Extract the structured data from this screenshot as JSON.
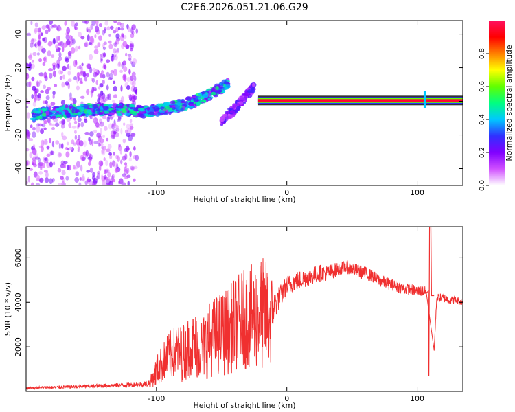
{
  "figure": {
    "title": "C2E6.2026.051.21.06.G29"
  },
  "chart_data": [
    {
      "type": "heatmap",
      "title": "C2E6.2026.051.21.06.G29",
      "xlabel": "Height of straight line (km)",
      "ylabel": "Frequency (Hz)",
      "xlim": [
        -200,
        135
      ],
      "ylim": [
        -50,
        48
      ],
      "xticks": [
        -100,
        0,
        100
      ],
      "yticks": [
        -40,
        -20,
        0,
        20,
        40
      ],
      "tick_labels_x": [
        "-100",
        "0",
        "100"
      ],
      "tick_labels_y": [
        "-40",
        "-20",
        "0",
        "20",
        "40"
      ],
      "colorbar": {
        "label": "Normalized spectral amplitude",
        "range": [
          0,
          1
        ],
        "ticks": [
          0.0,
          0.2,
          0.4,
          0.6,
          0.8
        ],
        "tick_labels": [
          "0.0",
          "0.2",
          "0.4",
          "0.6",
          "0.8"
        ],
        "colors": [
          "#ffffff",
          "#d050ff",
          "#8000ff",
          "#3030ff",
          "#00c8ff",
          "#00ff80",
          "#60ff00",
          "#ffff00",
          "#ff8000",
          "#ff0000",
          "#ff1060"
        ]
      },
      "features": [
        {
          "name": "noise-region",
          "x_range": [
            -200,
            -115
          ],
          "y_range": [
            -50,
            48
          ],
          "amplitude": 0.15
        },
        {
          "name": "low-frequency-trace",
          "points": [
            [
              -195,
              -8
            ],
            [
              -170,
              -6
            ],
            [
              -150,
              -5
            ],
            [
              -125,
              -5
            ],
            [
              -110,
              -6
            ],
            [
              -95,
              -5
            ],
            [
              -80,
              -2
            ],
            [
              -70,
              0
            ],
            [
              -60,
              4
            ],
            [
              -50,
              8
            ],
            [
              -45,
              10
            ]
          ],
          "amplitude": 0.35
        },
        {
          "name": "second-trace",
          "points": [
            [
              -50,
              -12
            ],
            [
              -42,
              -6
            ],
            [
              -35,
              0
            ],
            [
              -28,
              6
            ],
            [
              -25,
              10
            ]
          ],
          "amplitude": 0.2
        },
        {
          "name": "steady-carrier",
          "x_range": [
            -22,
            135
          ],
          "y": 0.5,
          "amplitude": 1.0
        },
        {
          "name": "spike",
          "x": 106,
          "y_range": [
            -4,
            6
          ],
          "amplitude": 0.4
        }
      ]
    },
    {
      "type": "line",
      "xlabel": "Height of straight line (km)",
      "ylabel": "SNR (10 * v/v)",
      "xlim": [
        -200,
        135
      ],
      "ylim": [
        0,
        7400
      ],
      "xticks": [
        -100,
        0,
        100
      ],
      "yticks": [
        2000,
        4000,
        6000
      ],
      "tick_labels_x": [
        "-100",
        "0",
        "100"
      ],
      "tick_labels_y": [
        "2000",
        "4000",
        "6000"
      ],
      "line_color": "#f03030",
      "series": [
        {
          "name": "SNR",
          "x": [
            -200,
            -190,
            -180,
            -170,
            -160,
            -150,
            -140,
            -130,
            -120,
            -110,
            -105,
            -100,
            -95,
            -90,
            -85,
            -80,
            -75,
            -70,
            -65,
            -60,
            -55,
            -50,
            -45,
            -40,
            -35,
            -30,
            -25,
            -20,
            -15,
            -12,
            -10,
            -5,
            0,
            5,
            10,
            15,
            20,
            25,
            30,
            35,
            40,
            45,
            50,
            55,
            60,
            65,
            70,
            75,
            80,
            85,
            90,
            95,
            100,
            105,
            108,
            110,
            112,
            115,
            120,
            125,
            130,
            135
          ],
          "y": [
            150,
            170,
            180,
            200,
            220,
            240,
            260,
            280,
            300,
            320,
            400,
            900,
            1300,
            1600,
            1800,
            1700,
            2000,
            2100,
            1900,
            2300,
            2500,
            2600,
            2700,
            3000,
            3200,
            3300,
            3400,
            3500,
            3400,
            3300,
            3800,
            4300,
            4700,
            4900,
            5000,
            5100,
            5200,
            5300,
            5300,
            5400,
            5500,
            5600,
            5500,
            5400,
            5300,
            5200,
            5000,
            4900,
            4800,
            4700,
            4600,
            4600,
            4500,
            4500,
            4400,
            7400,
            700,
            4200,
            4200,
            4100,
            4100,
            4000
          ],
          "noise_amplitude": [
            60,
            60,
            70,
            70,
            80,
            80,
            90,
            90,
            100,
            100,
            200,
            700,
            900,
            1100,
            1200,
            1300,
            1400,
            1500,
            1500,
            1700,
            1800,
            1900,
            2000,
            2100,
            2200,
            2300,
            2400,
            2600,
            2500,
            2200,
            700,
            500,
            500,
            450,
            450,
            400,
            400,
            400,
            350,
            350,
            300,
            300,
            300,
            300,
            300,
            280,
            280,
            280,
            260,
            260,
            260,
            250,
            250,
            250,
            250,
            0,
            0,
            200,
            200,
            180,
            180,
            150
          ]
        }
      ]
    }
  ]
}
